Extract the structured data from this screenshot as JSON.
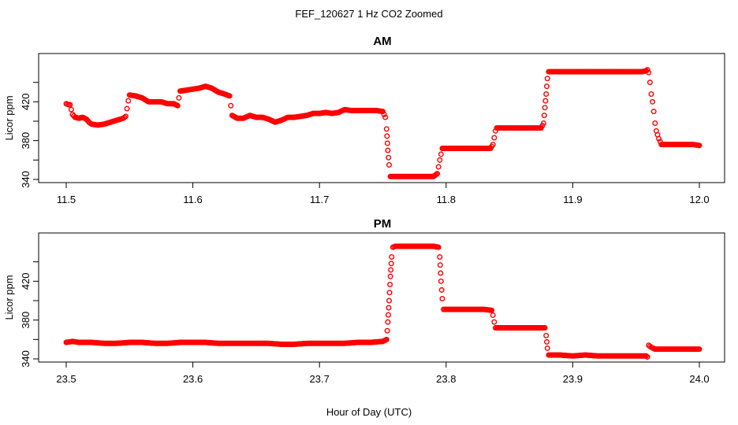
{
  "figure": {
    "title": "FEF_120627  1 Hz CO2 Zoomed",
    "xlabel": "Hour of Day (UTC)"
  },
  "colors": {
    "points": "#ff0000",
    "axes": "#000000",
    "background": "#ffffff"
  },
  "chart_data": [
    {
      "type": "scatter",
      "title": "AM",
      "xlabel": "",
      "ylabel": "Licor ppm",
      "xlim": [
        11.5,
        12.0
      ],
      "ylim": [
        340,
        460
      ],
      "xticks": [
        "11.5",
        "11.6",
        "11.7",
        "11.8",
        "11.9",
        "12.0"
      ],
      "yticks": [
        "340",
        "380",
        "420"
      ],
      "grid": false,
      "marker": "open circle",
      "series": [
        {
          "name": "",
          "x": [
            11.5,
            11.502,
            11.503,
            11.505,
            11.507,
            11.51,
            11.513,
            11.516,
            11.518,
            11.52,
            11.525,
            11.53,
            11.535,
            11.54,
            11.545,
            11.547,
            11.548,
            11.549,
            11.55,
            11.555,
            11.56,
            11.565,
            11.57,
            11.575,
            11.58,
            11.585,
            11.588,
            11.589,
            11.59,
            11.595,
            11.6,
            11.605,
            11.61,
            11.615,
            11.62,
            11.625,
            11.629,
            11.63,
            11.631,
            11.635,
            11.64,
            11.645,
            11.65,
            11.655,
            11.66,
            11.665,
            11.67,
            11.675,
            11.68,
            11.685,
            11.69,
            11.695,
            11.7,
            11.705,
            11.71,
            11.715,
            11.72,
            11.725,
            11.73,
            11.735,
            11.74,
            11.745,
            11.75,
            11.752,
            11.753,
            11.754,
            11.755,
            11.756,
            11.76,
            11.765,
            11.77,
            11.775,
            11.78,
            11.785,
            11.79,
            11.793,
            11.794,
            11.795,
            11.796,
            11.797,
            11.8,
            11.805,
            11.81,
            11.815,
            11.82,
            11.825,
            11.83,
            11.835,
            11.837,
            11.838,
            11.839,
            11.84,
            11.845,
            11.85,
            11.855,
            11.86,
            11.865,
            11.87,
            11.875,
            11.877,
            11.878,
            11.879,
            11.88,
            11.881,
            11.885,
            11.89,
            11.9,
            11.91,
            11.92,
            11.93,
            11.94,
            11.95,
            11.955,
            11.958,
            11.959,
            11.96,
            11.961,
            11.962,
            11.963,
            11.964,
            11.965,
            11.966,
            11.968,
            11.97,
            11.975,
            11.98,
            11.985,
            11.99,
            11.995,
            12.0
          ],
          "y": [
            418,
            417,
            417,
            407,
            404,
            403,
            404,
            402,
            399,
            397,
            396,
            397,
            399,
            401,
            403,
            405,
            413,
            421,
            427,
            426,
            424,
            420,
            420,
            420,
            418,
            418,
            416,
            424,
            431,
            432,
            433,
            434,
            436,
            434,
            430,
            428,
            426,
            416,
            406,
            403,
            403,
            406,
            404,
            404,
            402,
            399,
            401,
            404,
            404,
            405,
            406,
            408,
            408,
            409,
            408,
            409,
            412,
            411,
            411,
            411,
            411,
            411,
            410,
            404,
            392,
            370,
            355,
            343,
            343,
            343,
            343,
            343,
            343,
            343,
            343,
            346,
            353,
            360,
            366,
            372,
            372,
            372,
            372,
            372,
            372,
            372,
            372,
            372,
            376,
            383,
            390,
            393,
            393,
            393,
            393,
            393,
            393,
            393,
            393,
            398,
            414,
            428,
            444,
            451,
            451,
            451,
            451,
            451,
            451,
            451,
            451,
            451,
            451,
            452,
            453,
            450,
            440,
            428,
            420,
            410,
            398,
            390,
            382,
            376,
            376,
            376,
            376,
            376,
            376,
            375
          ]
        }
      ]
    },
    {
      "type": "scatter",
      "title": "PM",
      "xlabel": "Hour of Day (UTC)",
      "ylabel": "Licor ppm",
      "xlim": [
        23.5,
        24.0
      ],
      "ylim": [
        340,
        460
      ],
      "xticks": [
        "23.5",
        "23.6",
        "23.7",
        "23.8",
        "23.9",
        "24.0"
      ],
      "yticks": [
        "340",
        "380",
        "420"
      ],
      "grid": false,
      "marker": "open circle",
      "series": [
        {
          "name": "",
          "x": [
            23.5,
            23.505,
            23.51,
            23.52,
            23.53,
            23.54,
            23.55,
            23.56,
            23.57,
            23.58,
            23.59,
            23.6,
            23.61,
            23.62,
            23.63,
            23.64,
            23.65,
            23.66,
            23.67,
            23.68,
            23.69,
            23.7,
            23.71,
            23.72,
            23.73,
            23.74,
            23.75,
            23.753,
            23.754,
            23.755,
            23.756,
            23.757,
            23.758,
            23.76,
            23.77,
            23.78,
            23.79,
            23.794,
            23.795,
            23.796,
            23.797,
            23.798,
            23.8,
            23.81,
            23.82,
            23.83,
            23.836,
            23.837,
            23.838,
            23.839,
            23.84,
            23.85,
            23.86,
            23.87,
            23.878,
            23.879,
            23.88,
            23.881,
            23.885,
            23.89,
            23.9,
            23.91,
            23.92,
            23.93,
            23.94,
            23.95,
            23.958,
            23.959,
            23.96,
            23.962,
            23.965,
            23.97,
            23.98,
            23.99,
            24.0
          ],
          "y": [
            357,
            358,
            357,
            357,
            356,
            356,
            357,
            357,
            356,
            356,
            357,
            357,
            357,
            356,
            356,
            356,
            356,
            356,
            355,
            355,
            356,
            356,
            356,
            356,
            357,
            357,
            358,
            360,
            378,
            400,
            425,
            445,
            455,
            456,
            456,
            456,
            456,
            455,
            445,
            420,
            402,
            391,
            391,
            391,
            391,
            391,
            390,
            385,
            378,
            372,
            372,
            372,
            372,
            372,
            372,
            364,
            351,
            344,
            344,
            344,
            343,
            344,
            343,
            343,
            343,
            343,
            343,
            342,
            354,
            352,
            350,
            350,
            350,
            350,
            350
          ]
        }
      ]
    }
  ]
}
